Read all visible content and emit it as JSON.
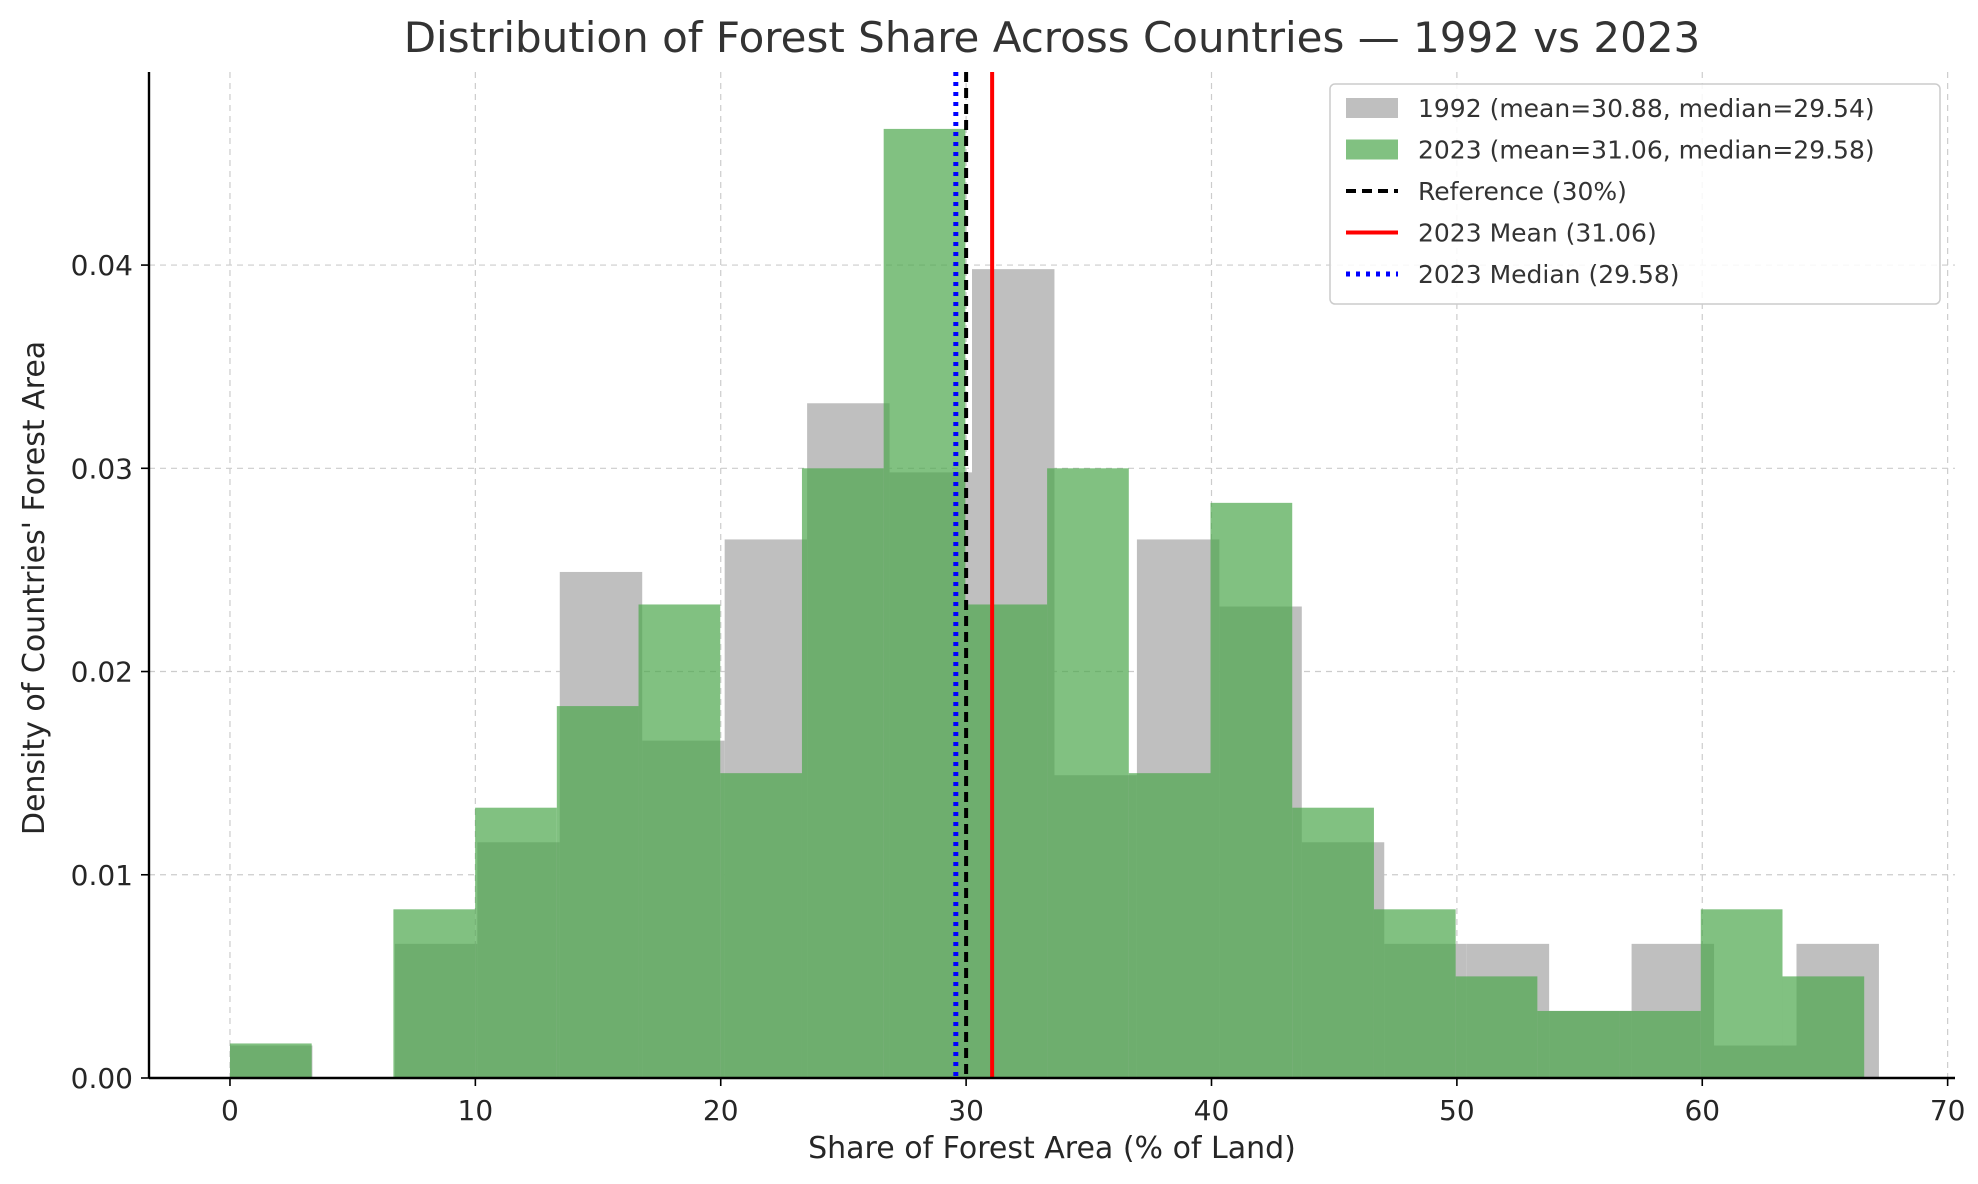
{
  "chart_data": {
    "type": "bar",
    "title": "Distribution of Forest Share Across Countries — 1992 vs 2023",
    "xlabel": "Share of Forest Area (% of Land)",
    "ylabel": "Density of Countries' Forest Area",
    "xlim": [
      -3.3,
      70.3
    ],
    "ylim": [
      0,
      0.0495
    ],
    "xticks": [
      0,
      10,
      20,
      30,
      40,
      50,
      60,
      70
    ],
    "yticks": [
      0.0,
      0.01,
      0.02,
      0.03,
      0.04
    ],
    "ytick_labels": [
      "0.00",
      "0.01",
      "0.02",
      "0.03",
      "0.04"
    ],
    "grid": true,
    "legend_position": "top-right",
    "series": [
      {
        "name": "1992 (mean=30.88, median=29.54)",
        "color": "#bfbfbf",
        "bins": [
          {
            "x0": 0.0,
            "x1": 3.36,
            "value": 0.0016
          },
          {
            "x0": 3.36,
            "x1": 6.72,
            "value": 0.0
          },
          {
            "x0": 6.72,
            "x1": 10.08,
            "value": 0.0066
          },
          {
            "x0": 10.08,
            "x1": 13.44,
            "value": 0.0116
          },
          {
            "x0": 13.44,
            "x1": 16.8,
            "value": 0.0249
          },
          {
            "x0": 16.8,
            "x1": 20.16,
            "value": 0.0166
          },
          {
            "x0": 20.16,
            "x1": 23.52,
            "value": 0.0265
          },
          {
            "x0": 23.52,
            "x1": 26.88,
            "value": 0.0332
          },
          {
            "x0": 26.88,
            "x1": 30.24,
            "value": 0.0298
          },
          {
            "x0": 30.24,
            "x1": 33.6,
            "value": 0.0398
          },
          {
            "x0": 33.6,
            "x1": 36.96,
            "value": 0.0149
          },
          {
            "x0": 36.96,
            "x1": 40.32,
            "value": 0.0265
          },
          {
            "x0": 40.32,
            "x1": 43.68,
            "value": 0.0232
          },
          {
            "x0": 43.68,
            "x1": 47.04,
            "value": 0.0116
          },
          {
            "x0": 47.04,
            "x1": 50.4,
            "value": 0.0066
          },
          {
            "x0": 50.4,
            "x1": 53.76,
            "value": 0.0066
          },
          {
            "x0": 53.76,
            "x1": 57.12,
            "value": 0.0033
          },
          {
            "x0": 57.12,
            "x1": 60.48,
            "value": 0.0066
          },
          {
            "x0": 60.48,
            "x1": 63.84,
            "value": 0.0016
          },
          {
            "x0": 63.84,
            "x1": 67.2,
            "value": 0.0066
          }
        ]
      },
      {
        "name": "2023 (mean=31.06, median=29.58)",
        "color": "#4ca64c",
        "bins": [
          {
            "x0": 0.0,
            "x1": 3.33,
            "value": 0.0017
          },
          {
            "x0": 3.33,
            "x1": 6.66,
            "value": 0.0
          },
          {
            "x0": 6.66,
            "x1": 9.99,
            "value": 0.0083
          },
          {
            "x0": 9.99,
            "x1": 13.32,
            "value": 0.0133
          },
          {
            "x0": 13.32,
            "x1": 16.65,
            "value": 0.0183
          },
          {
            "x0": 16.65,
            "x1": 19.98,
            "value": 0.0233
          },
          {
            "x0": 19.98,
            "x1": 23.31,
            "value": 0.015
          },
          {
            "x0": 23.31,
            "x1": 26.64,
            "value": 0.03
          },
          {
            "x0": 26.64,
            "x1": 29.97,
            "value": 0.0467
          },
          {
            "x0": 29.97,
            "x1": 33.3,
            "value": 0.0233
          },
          {
            "x0": 33.3,
            "x1": 36.63,
            "value": 0.03
          },
          {
            "x0": 36.63,
            "x1": 39.96,
            "value": 0.015
          },
          {
            "x0": 39.96,
            "x1": 43.29,
            "value": 0.0283
          },
          {
            "x0": 43.29,
            "x1": 46.62,
            "value": 0.0133
          },
          {
            "x0": 46.62,
            "x1": 49.95,
            "value": 0.0083
          },
          {
            "x0": 49.95,
            "x1": 53.28,
            "value": 0.005
          },
          {
            "x0": 53.28,
            "x1": 56.61,
            "value": 0.0033
          },
          {
            "x0": 56.61,
            "x1": 59.94,
            "value": 0.0033
          },
          {
            "x0": 59.94,
            "x1": 63.27,
            "value": 0.0083
          },
          {
            "x0": 63.27,
            "x1": 66.6,
            "value": 0.005
          }
        ]
      }
    ],
    "reference_lines": [
      {
        "name": "Reference (30%)",
        "x": 30,
        "color": "#000000",
        "style": "dashed"
      },
      {
        "name": "2023 Mean (31.06)",
        "x": 31.06,
        "color": "#ff0000",
        "style": "solid"
      },
      {
        "name": "2023 Median (29.58)",
        "x": 29.58,
        "color": "#0000ff",
        "style": "dotted"
      }
    ]
  }
}
